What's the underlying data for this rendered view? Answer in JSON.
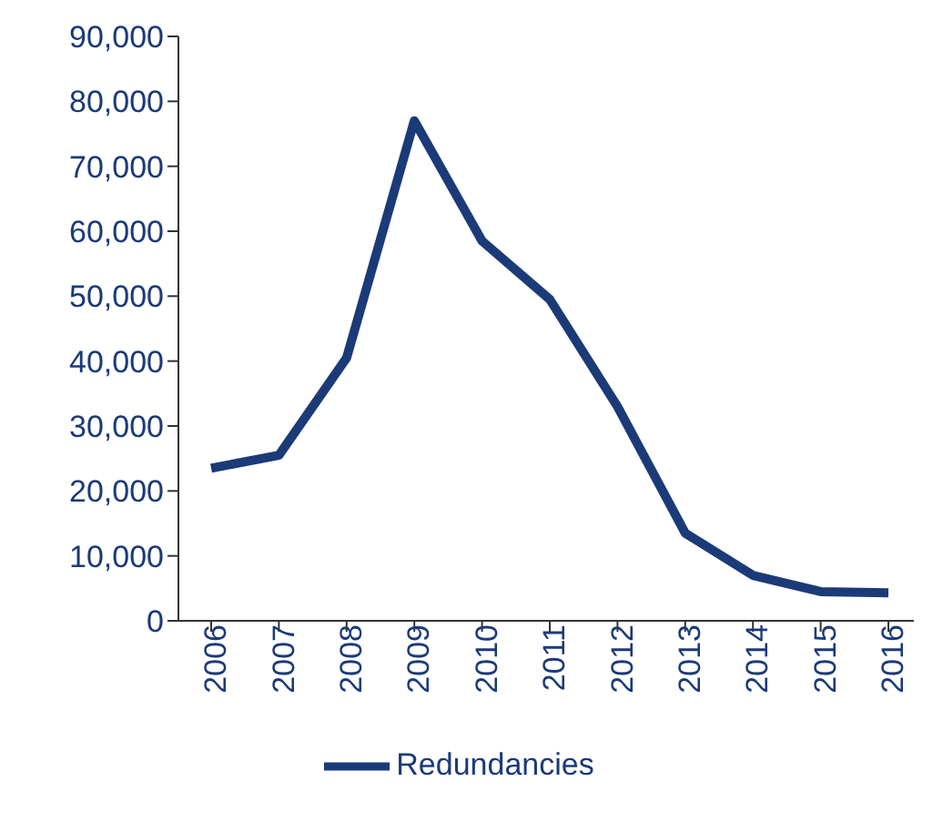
{
  "chart_data": {
    "type": "line",
    "categories": [
      "2006",
      "2007",
      "2008",
      "2009",
      "2010",
      "2011",
      "2012",
      "2013",
      "2014",
      "2015",
      "2016"
    ],
    "series": [
      {
        "name": "Redundancies",
        "color": "#1b3a78",
        "values": [
          23500,
          25500,
          40500,
          77000,
          58500,
          49500,
          33000,
          13500,
          7000,
          4500,
          4300
        ]
      }
    ],
    "ylim": [
      0,
      90000
    ],
    "yticks": [
      {
        "value": 0,
        "label": "0"
      },
      {
        "value": 10000,
        "label": "10,000"
      },
      {
        "value": 20000,
        "label": "20,000"
      },
      {
        "value": 30000,
        "label": "30,000"
      },
      {
        "value": 40000,
        "label": "40,000"
      },
      {
        "value": 50000,
        "label": "50,000"
      },
      {
        "value": 60000,
        "label": "60,000"
      },
      {
        "value": 70000,
        "label": "70,000"
      },
      {
        "value": 80000,
        "label": "80,000"
      },
      {
        "value": 90000,
        "label": "90,000"
      }
    ],
    "grid": false,
    "legend": "bottom",
    "marker": "none",
    "line_style": "solid"
  }
}
